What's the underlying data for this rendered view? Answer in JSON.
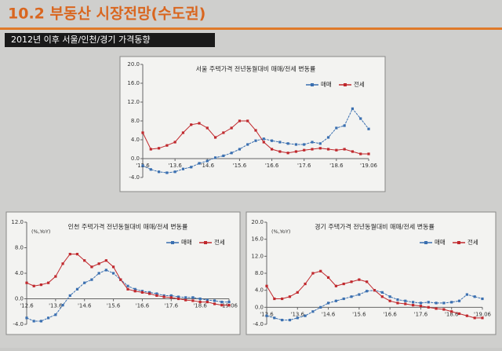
{
  "slide": {
    "title": "10.2 부동산 시장전망(수도권)",
    "subtitle": "2012년 이후 서울/인천/경기 가격동향"
  },
  "chart_data": [
    {
      "type": "line",
      "title": "서울 주택가격 전년동월대비 매매/전세 변동률",
      "legend": "top-right",
      "categories": [
        "'12.6",
        null,
        null,
        null,
        "'13.6",
        null,
        null,
        null,
        "'14.6",
        null,
        null,
        null,
        "'15.6",
        null,
        null,
        null,
        "'16.6",
        null,
        null,
        null,
        "'17.6",
        null,
        null,
        null,
        "'18.6",
        null,
        null,
        null,
        "'19.06"
      ],
      "series": [
        {
          "name": "매매",
          "color": "#3a6fb0",
          "values": [
            -1.5,
            -2.3,
            -2.8,
            -3.0,
            -2.8,
            -2.2,
            -1.8,
            -1.0,
            -0.5,
            0.2,
            0.6,
            1.2,
            2.0,
            3.0,
            3.8,
            4.2,
            3.8,
            3.5,
            3.2,
            3.0,
            3.0,
            3.5,
            3.2,
            4.5,
            6.5,
            7.0,
            10.6,
            8.5,
            6.3
          ]
        },
        {
          "name": "전세",
          "color": "#c0282d",
          "values": [
            5.5,
            2.0,
            2.2,
            2.8,
            3.5,
            5.5,
            7.2,
            7.5,
            6.5,
            4.5,
            5.5,
            6.5,
            8.0,
            8.0,
            6.0,
            3.5,
            2.0,
            1.5,
            1.2,
            1.5,
            1.8,
            2.0,
            2.2,
            2.0,
            1.8,
            2.0,
            1.5,
            1.0,
            1.0
          ]
        }
      ],
      "ylim": [
        -4,
        20
      ],
      "yticks": [
        {
          "value": -4,
          "label": "-4.0"
        },
        {
          "value": 0,
          "label": "0.0"
        },
        {
          "value": 4,
          "label": "4.0"
        },
        {
          "value": 8,
          "label": "8.0"
        },
        {
          "value": 12,
          "label": "12.0"
        },
        {
          "value": 16,
          "label": "16.0"
        },
        {
          "value": 20,
          "label": "20.0"
        }
      ]
    },
    {
      "type": "line",
      "title": "인천 주택가격 전년동월대비 매매/전세 변동률",
      "ylabel": "(%,YoY)",
      "legend": "top-right",
      "categories": [
        "'12.6",
        null,
        null,
        null,
        "'13.6",
        null,
        null,
        null,
        "'14.6",
        null,
        null,
        null,
        "'15.6",
        null,
        null,
        null,
        "'16.6",
        null,
        null,
        null,
        "'17.6",
        null,
        null,
        null,
        "'18.6",
        null,
        null,
        null,
        "'19.06"
      ],
      "series": [
        {
          "name": "매매",
          "color": "#3a6fb0",
          "values": [
            -3.0,
            -3.5,
            -3.5,
            -3.0,
            -2.5,
            -1.0,
            0.5,
            1.5,
            2.5,
            3.0,
            4.0,
            4.5,
            4.0,
            3.0,
            2.0,
            1.5,
            1.2,
            1.0,
            0.8,
            0.5,
            0.5,
            0.3,
            0.2,
            0.2,
            0.0,
            -0.2,
            -0.3,
            -0.5,
            -0.5
          ]
        },
        {
          "name": "전세",
          "color": "#c0282d",
          "values": [
            2.5,
            2.0,
            2.2,
            2.5,
            3.5,
            5.5,
            7.0,
            7.0,
            6.0,
            5.0,
            5.5,
            6.0,
            5.0,
            3.0,
            1.5,
            1.2,
            1.0,
            0.8,
            0.5,
            0.3,
            0.2,
            0.0,
            -0.2,
            -0.3,
            -0.5,
            -0.5,
            -0.8,
            -1.0,
            -1.0
          ]
        }
      ],
      "ylim": [
        -4,
        12
      ],
      "yticks": [
        {
          "value": -4,
          "label": "-4.0"
        },
        {
          "value": 0,
          "label": "0.0"
        },
        {
          "value": 4,
          "label": "4.0"
        },
        {
          "value": 8,
          "label": "8.0"
        },
        {
          "value": 12,
          "label": "12.0"
        }
      ]
    },
    {
      "type": "line",
      "title": "경기 주택가격 전년동월대비 매매/전세 변동률",
      "ylabel": "(%,YoY)",
      "legend": "top-right",
      "categories": [
        "'12.6",
        null,
        null,
        null,
        "'13.6",
        null,
        null,
        null,
        "'14.6",
        null,
        null,
        null,
        "'15.6",
        null,
        null,
        null,
        "'16.6",
        null,
        null,
        null,
        "'17.6",
        null,
        null,
        null,
        "'18.6",
        null,
        null,
        null,
        "'19.06"
      ],
      "series": [
        {
          "name": "매매",
          "color": "#3a6fb0",
          "values": [
            -2.0,
            -2.5,
            -3.0,
            -3.0,
            -2.5,
            -2.0,
            -1.0,
            0.0,
            1.0,
            1.5,
            2.0,
            2.5,
            3.0,
            3.8,
            4.0,
            3.5,
            2.5,
            1.8,
            1.5,
            1.2,
            1.0,
            1.2,
            1.0,
            1.0,
            1.2,
            1.5,
            3.0,
            2.5,
            2.0
          ]
        },
        {
          "name": "전세",
          "color": "#c0282d",
          "values": [
            5.0,
            2.0,
            2.0,
            2.5,
            3.5,
            5.5,
            8.0,
            8.5,
            7.0,
            5.0,
            5.5,
            6.0,
            6.5,
            6.0,
            4.0,
            2.5,
            1.5,
            1.0,
            0.8,
            0.5,
            0.3,
            0.0,
            -0.3,
            -0.5,
            -1.0,
            -1.5,
            -2.0,
            -2.5,
            -2.5
          ]
        }
      ],
      "ylim": [
        -4,
        20
      ],
      "yticks": [
        {
          "value": -4,
          "label": "-4.0"
        },
        {
          "value": 0,
          "label": "0.0"
        },
        {
          "value": 4,
          "label": "4.0"
        },
        {
          "value": 8,
          "label": "8.0"
        },
        {
          "value": 12,
          "label": "12.0"
        },
        {
          "value": 16,
          "label": "16.0"
        },
        {
          "value": 20,
          "label": "20.0"
        }
      ]
    }
  ]
}
